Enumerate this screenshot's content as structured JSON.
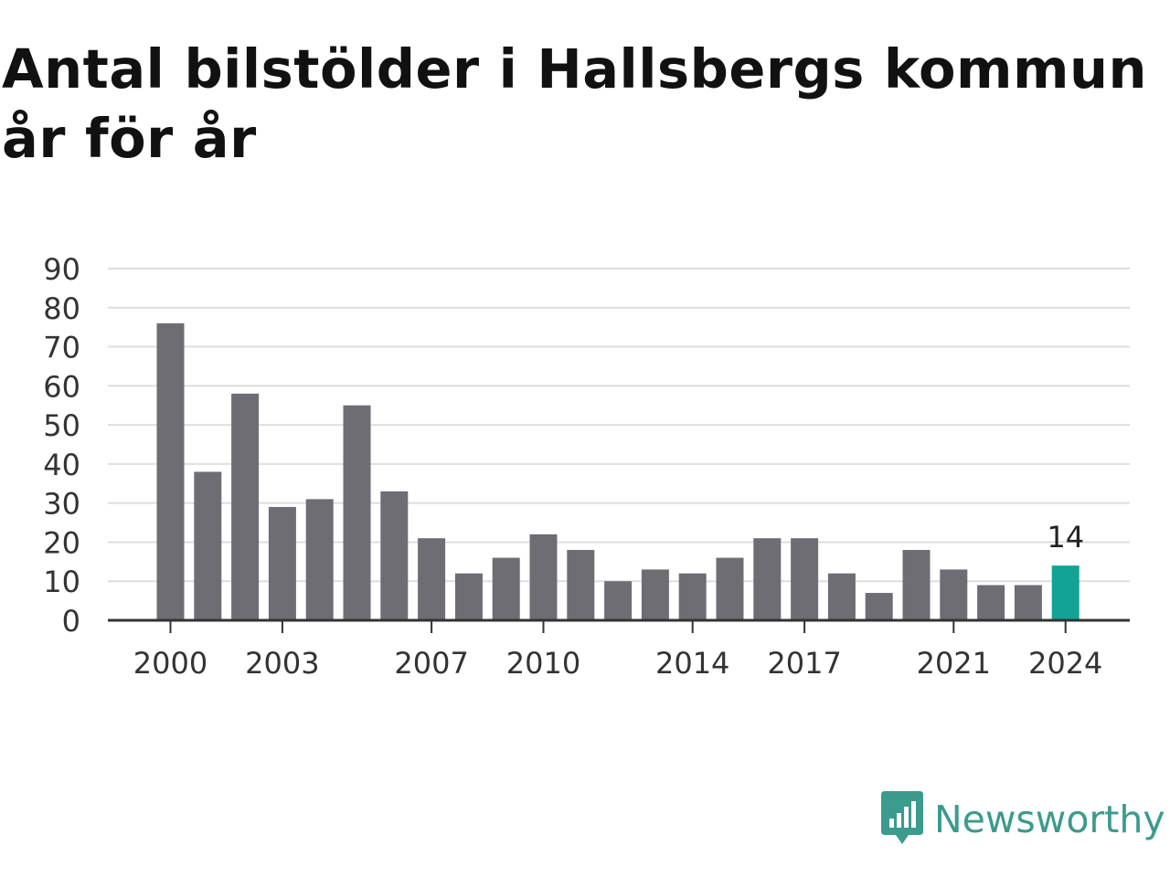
{
  "title": "Antal bilstölder i Hallsbergs kommun år för år",
  "brand": {
    "name": "Newsworthy",
    "icon": "newsworthy-logo-icon",
    "color": "#3b9b8c"
  },
  "chart_data": {
    "type": "bar",
    "title": "Antal bilstölder i Hallsbergs kommun år för år",
    "xlabel": "",
    "ylabel": "",
    "categories": [
      "2000",
      "2001",
      "2002",
      "2003",
      "2004",
      "2005",
      "2006",
      "2007",
      "2008",
      "2009",
      "2010",
      "2011",
      "2012",
      "2013",
      "2014",
      "2015",
      "2016",
      "2017",
      "2018",
      "2019",
      "2020",
      "2021",
      "2022",
      "2023",
      "2024"
    ],
    "x_tick_labels": [
      "2000",
      "2003",
      "2007",
      "2010",
      "2014",
      "2017",
      "2021",
      "2024"
    ],
    "values": [
      76,
      38,
      58,
      29,
      31,
      55,
      33,
      21,
      12,
      16,
      22,
      18,
      10,
      13,
      12,
      16,
      21,
      21,
      12,
      7,
      18,
      13,
      9,
      9,
      14
    ],
    "ylim": [
      0,
      90
    ],
    "y_ticks": [
      0,
      10,
      20,
      30,
      40,
      50,
      60,
      70,
      80,
      90
    ],
    "grid": true,
    "highlight": {
      "category": "2024",
      "label": "14",
      "color": "#12a296"
    },
    "bar_color": "#6e6d73"
  }
}
